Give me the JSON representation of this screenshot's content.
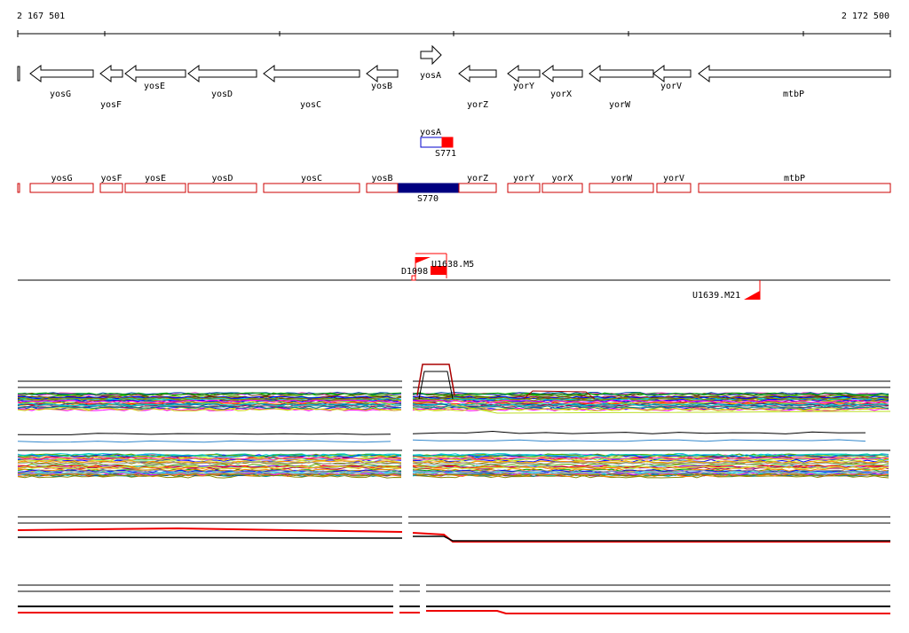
{
  "coordinates": {
    "start": "2 167 501",
    "end": "2 172 500"
  },
  "genes_top": [
    {
      "label": "yosG",
      "strand": "-"
    },
    {
      "label": "yosF",
      "strand": "-"
    },
    {
      "label": "yosE",
      "strand": "-"
    },
    {
      "label": "yosD",
      "strand": "-"
    },
    {
      "label": "yosC",
      "strand": "-"
    },
    {
      "label": "yosB",
      "strand": "-"
    },
    {
      "label": "yosA",
      "strand": "+"
    },
    {
      "label": "yorZ",
      "strand": "-"
    },
    {
      "label": "yorY",
      "strand": "-"
    },
    {
      "label": "yorX",
      "strand": "-"
    },
    {
      "label": "yorW",
      "strand": "-"
    },
    {
      "label": "yorV",
      "strand": "-"
    },
    {
      "label": "mtbP",
      "strand": "-"
    }
  ],
  "small_feature": {
    "label": "yosA",
    "sub_label": "S771",
    "colors": [
      "#0000cc",
      "#ff0000"
    ]
  },
  "feature_row": {
    "labels": [
      "yosG",
      "yosF",
      "yosE",
      "yosD",
      "yosC",
      "yosB",
      "yorZ",
      "yorY",
      "yorX",
      "yorW",
      "yorV",
      "mtbP"
    ],
    "highlight": {
      "label": "S770",
      "color": "#000080"
    },
    "box_color": "#cc0000"
  },
  "markers": [
    {
      "label": "D1098"
    },
    {
      "label": "U1638.M5"
    },
    {
      "label": "U1639.M21"
    }
  ],
  "colors": {
    "gene_outline": "#000000",
    "feature_red": "#cc0000",
    "marker_red": "#ff0000"
  }
}
